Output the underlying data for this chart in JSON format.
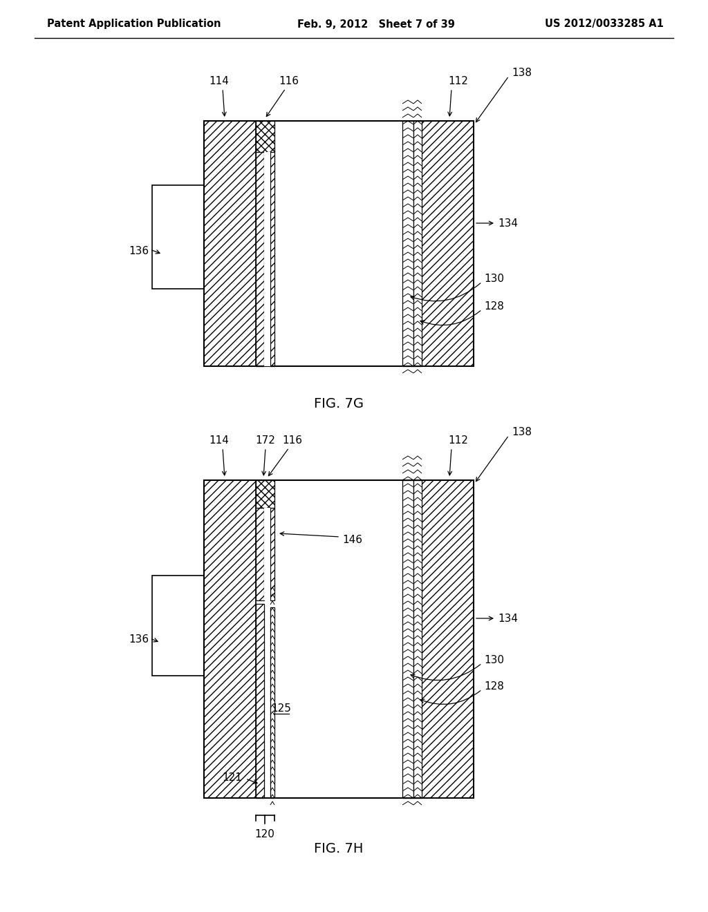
{
  "header_left": "Patent Application Publication",
  "header_mid": "Feb. 9, 2012   Sheet 7 of 39",
  "header_right": "US 2012/0033285 A1",
  "fig1_label": "FIG. 7G",
  "fig2_label": "FIG. 7H",
  "bg_color": "#ffffff"
}
